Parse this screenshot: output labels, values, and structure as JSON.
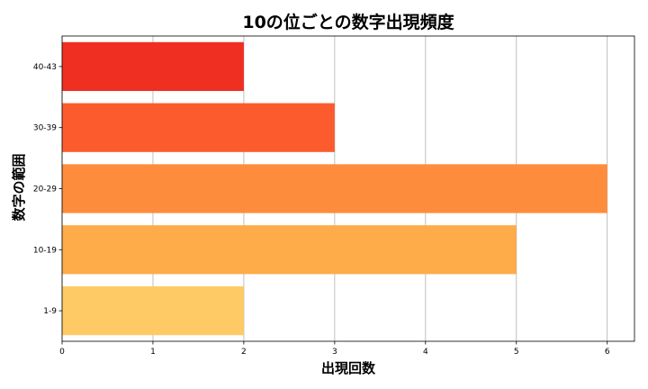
{
  "chart_data": {
    "type": "bar",
    "orientation": "horizontal",
    "title": "10の位ごとの数字出現頻度",
    "xlabel": "出現回数",
    "ylabel": "数字の範囲",
    "categories": [
      "1-9",
      "10-19",
      "20-29",
      "30-39",
      "40-43"
    ],
    "values": [
      2,
      5,
      6,
      3,
      2
    ],
    "colors": [
      "#fdca65",
      "#feab4a",
      "#fd8d3c",
      "#fc5b2e",
      "#ef2f22"
    ],
    "xlim": [
      0,
      6.3
    ],
    "xticks": [
      "0",
      "1",
      "2",
      "3",
      "4",
      "5",
      "6"
    ],
    "grid": "vertical"
  }
}
